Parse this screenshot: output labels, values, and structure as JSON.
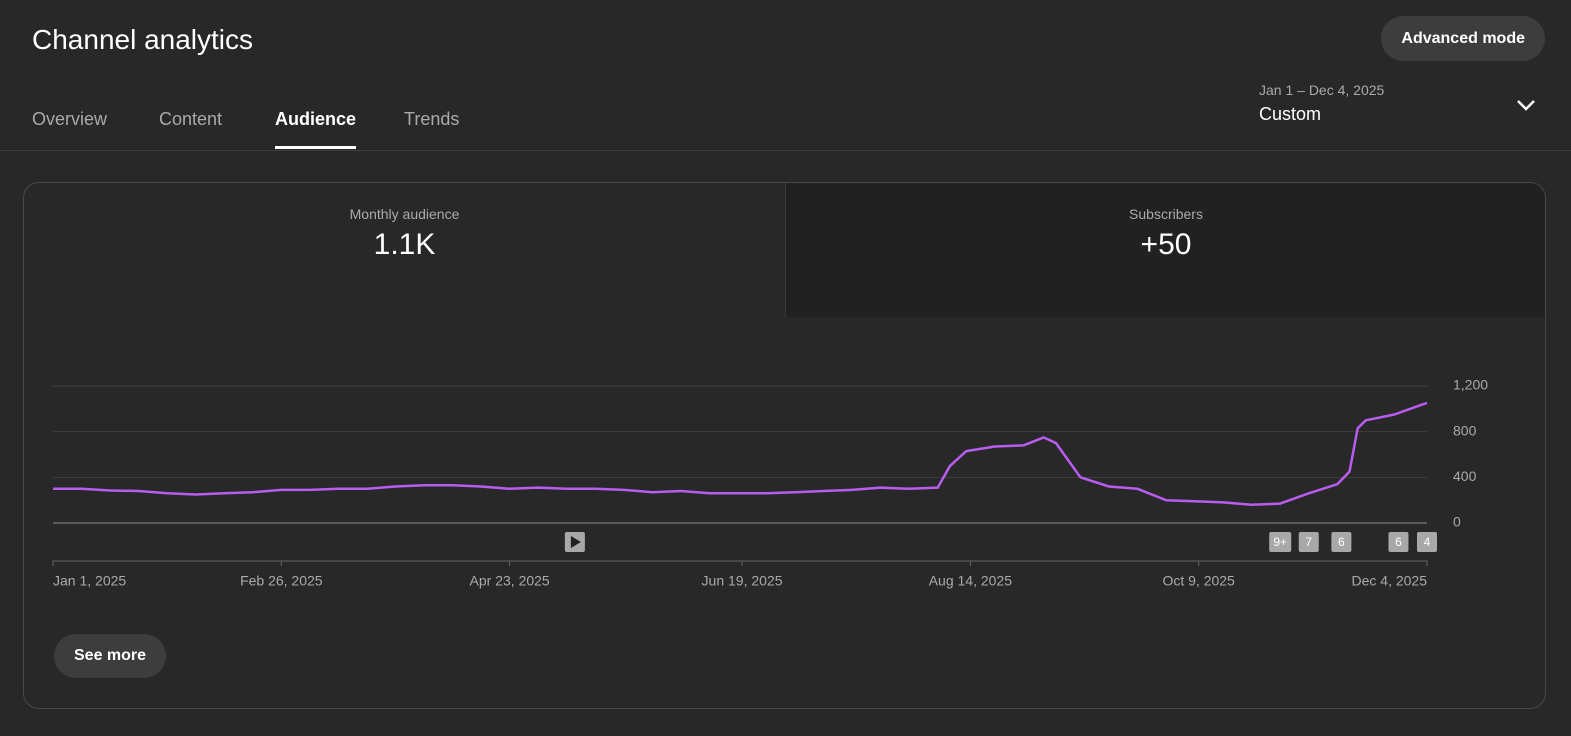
{
  "header": {
    "title": "Channel analytics",
    "button": "Advanced mode"
  },
  "tabs": [
    "Overview",
    "Content",
    "Audience",
    "Trends"
  ],
  "active_tab": 2,
  "date_range": {
    "range": "Jan 1 – Dec 4, 2025",
    "label": "Custom"
  },
  "metrics": [
    {
      "label": "Monthly audience",
      "value": "1.1K"
    },
    {
      "label": "Subscribers",
      "value": "+50"
    }
  ],
  "see_more": "See more",
  "chart_data": {
    "type": "line",
    "x": [
      "2025-01-01",
      "2025-01-08",
      "2025-01-15",
      "2025-01-22",
      "2025-01-29",
      "2025-02-05",
      "2025-02-12",
      "2025-02-19",
      "2025-02-26",
      "2025-03-05",
      "2025-03-12",
      "2025-03-19",
      "2025-03-26",
      "2025-04-02",
      "2025-04-09",
      "2025-04-16",
      "2025-04-23",
      "2025-04-30",
      "2025-05-07",
      "2025-05-14",
      "2025-05-21",
      "2025-05-28",
      "2025-06-04",
      "2025-06-11",
      "2025-06-18",
      "2025-06-25",
      "2025-07-02",
      "2025-07-09",
      "2025-07-16",
      "2025-07-23",
      "2025-07-30",
      "2025-08-06",
      "2025-08-09",
      "2025-08-13",
      "2025-08-20",
      "2025-08-27",
      "2025-09-01",
      "2025-09-04",
      "2025-09-10",
      "2025-09-17",
      "2025-09-24",
      "2025-10-01",
      "2025-10-08",
      "2025-10-15",
      "2025-10-22",
      "2025-10-29",
      "2025-11-05",
      "2025-11-12",
      "2025-11-15",
      "2025-11-17",
      "2025-11-19",
      "2025-11-26",
      "2025-12-03",
      "2025-12-04"
    ],
    "series": [
      {
        "name": "Monthly audience",
        "color": "#b95cf0",
        "values": [
          300,
          300,
          285,
          280,
          260,
          250,
          260,
          270,
          290,
          290,
          300,
          300,
          320,
          330,
          330,
          320,
          300,
          310,
          300,
          300,
          290,
          270,
          280,
          260,
          260,
          260,
          270,
          280,
          290,
          310,
          300,
          310,
          500,
          630,
          670,
          680,
          750,
          700,
          400,
          320,
          300,
          200,
          190,
          180,
          160,
          170,
          260,
          340,
          450,
          830,
          900,
          950,
          1040,
          1050
        ]
      }
    ],
    "xlim": [
      "2025-01-01",
      "2025-12-04"
    ],
    "xticks": [
      {
        "value": "2025-01-01",
        "label": "Jan 1, 2025"
      },
      {
        "value": "2025-02-26",
        "label": "Feb 26, 2025"
      },
      {
        "value": "2025-04-23",
        "label": "Apr 23, 2025"
      },
      {
        "value": "2025-06-19",
        "label": "Jun 19, 2025"
      },
      {
        "value": "2025-08-14",
        "label": "Aug 14, 2025"
      },
      {
        "value": "2025-10-09",
        "label": "Oct 9, 2025"
      },
      {
        "value": "2025-12-04",
        "label": "Dec 4, 2025"
      }
    ],
    "ylim": [
      0,
      1200
    ],
    "yticks": [
      0,
      400,
      800,
      {
        "value": 1200,
        "label": "1,200"
      }
    ],
    "grid": true,
    "annotations": [
      {
        "x": "2025-05-09"
      },
      {
        "x": "2025-10-29",
        "label": "9+"
      },
      {
        "x": "2025-11-05",
        "label": "7"
      },
      {
        "x": "2025-11-13",
        "label": "6"
      },
      {
        "x": "2025-11-27",
        "label": "6"
      },
      {
        "x": "2025-12-04",
        "label": "4"
      }
    ]
  }
}
